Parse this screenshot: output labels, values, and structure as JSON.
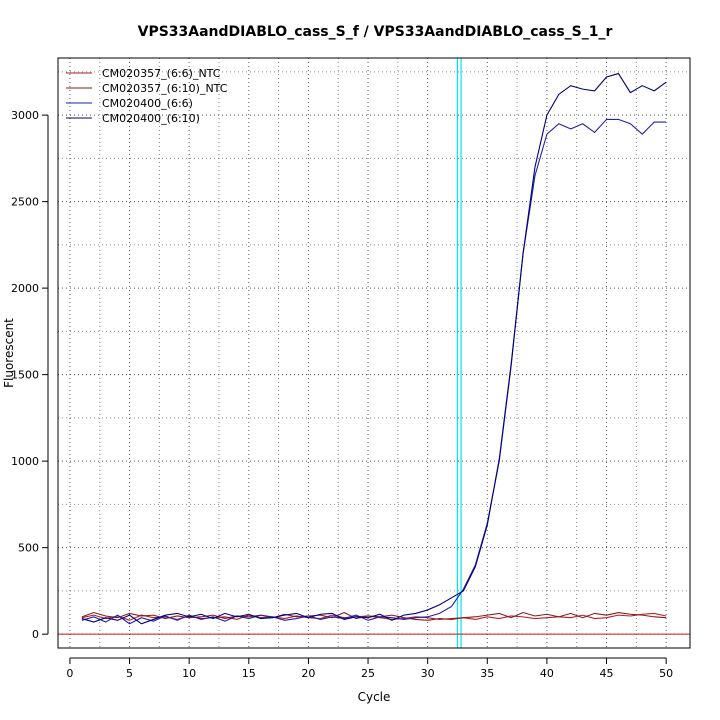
{
  "chart_data": {
    "type": "line",
    "title": "VPS33AandDIABLO_cass_S_f / VPS33AandDIABLO_cass_S_1_r",
    "xlabel": "Cycle",
    "ylabel": "Fluorescent",
    "xlim": [
      -1,
      52
    ],
    "ylim": [
      -80,
      3330
    ],
    "x_ticks": [
      0,
      5,
      10,
      15,
      20,
      25,
      30,
      35,
      40,
      45,
      50
    ],
    "y_ticks": [
      0,
      500,
      1000,
      1500,
      2000,
      2500,
      3000
    ],
    "grid": true,
    "legend_position": "top-left",
    "threshold_cycles": [
      32.5,
      32.8
    ],
    "threshold_color": "#00e5ee",
    "baseline": 0,
    "baseline_color": "#b22222",
    "x": [
      1,
      2,
      3,
      4,
      5,
      6,
      7,
      8,
      9,
      10,
      11,
      12,
      13,
      14,
      15,
      16,
      17,
      18,
      19,
      20,
      21,
      22,
      23,
      24,
      25,
      26,
      27,
      28,
      29,
      30,
      31,
      32,
      33,
      34,
      35,
      36,
      37,
      38,
      39,
      40,
      41,
      42,
      43,
      44,
      45,
      46,
      47,
      48,
      49,
      50
    ],
    "series": [
      {
        "name": "CM020357_(6:6)_NTC",
        "color": "#b22222",
        "values": [
          95,
          110,
          90,
          105,
          80,
          110,
          95,
          100,
          85,
          105,
          90,
          95,
          100,
          85,
          110,
          95,
          100,
          90,
          105,
          95,
          90,
          110,
          95,
          100,
          105,
          95,
          85,
          90,
          100,
          95,
          85,
          90,
          95,
          85,
          100,
          90,
          105,
          100,
          90,
          95,
          100,
          95,
          110,
          90,
          95,
          110,
          105,
          115,
          120,
          105
        ]
      },
      {
        "name": "CM020357_(6:10)_NTC",
        "color": "#8b1a1a",
        "values": [
          100,
          125,
          105,
          95,
          120,
          105,
          110,
          90,
          105,
          95,
          100,
          110,
          90,
          105,
          100,
          110,
          95,
          115,
          100,
          105,
          110,
          95,
          125,
          90,
          105,
          100,
          110,
          95,
          85,
          80,
          90,
          85,
          95,
          100,
          110,
          120,
          95,
          125,
          105,
          115,
          100,
          120,
          95,
          120,
          110,
          125,
          115,
          110,
          100,
          95
        ]
      },
      {
        "name": "CM020400_(6:6)",
        "color": "#2020b0",
        "values": [
          80,
          100,
          70,
          110,
          60,
          95,
          75,
          105,
          80,
          110,
          85,
          100,
          75,
          105,
          90,
          110,
          100,
          80,
          90,
          105,
          85,
          100,
          90,
          110,
          80,
          100,
          95,
          85,
          95,
          100,
          120,
          160,
          260,
          400,
          640,
          1000,
          1550,
          2200,
          2650,
          2890,
          2950,
          2920,
          2950,
          2900,
          2975,
          2975,
          2950,
          2890,
          2960,
          2960
        ]
      },
      {
        "name": "CM020400_(6:10)",
        "color": "#000080",
        "values": [
          90,
          70,
          95,
          80,
          110,
          60,
          85,
          110,
          120,
          100,
          115,
          90,
          120,
          100,
          115,
          90,
          95,
          110,
          120,
          95,
          115,
          120,
          85,
          100,
          95,
          115,
          80,
          110,
          120,
          140,
          170,
          210,
          250,
          390,
          630,
          1010,
          1560,
          2200,
          2700,
          3000,
          3120,
          3170,
          3150,
          3140,
          3220,
          3240,
          3130,
          3170,
          3140,
          3190
        ]
      }
    ]
  }
}
